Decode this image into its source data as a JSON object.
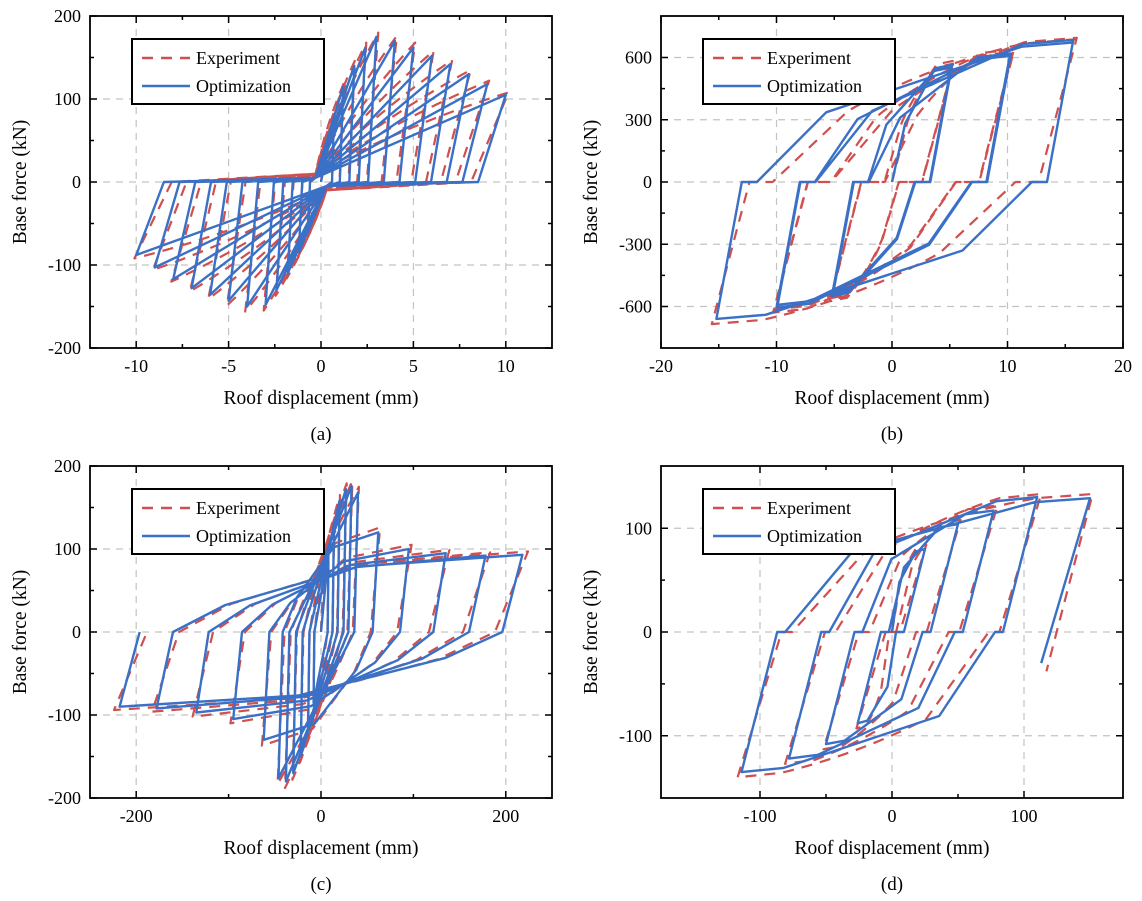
{
  "figure": {
    "background": "#ffffff",
    "colors": {
      "experiment": "#d04f4f",
      "optimization": "#3a70c6",
      "grid": "#c3c3c3",
      "axis": "#000000",
      "legend_border": "#000000",
      "legend_fill": "#ffffff"
    },
    "legend": {
      "experiment_label": "Experiment",
      "optimization_label": "Optimization"
    }
  },
  "chart_data": [
    {
      "id": "a",
      "type": "line",
      "panel_label": "(a)",
      "xlabel": "Roof displacement (mm)",
      "ylabel": "Base force (kN)",
      "xlim": [
        -12.5,
        12.5
      ],
      "xticks": [
        -10,
        -5,
        0,
        5,
        10
      ],
      "ylim": [
        -200,
        200
      ],
      "yticks": [
        -200,
        -100,
        0,
        100,
        200
      ],
      "grid": true,
      "legend_position": "top-left",
      "cycle_format": [
        "peak_disp_mm",
        "peak_force_kN",
        "neg_peak_disp_mm",
        "neg_peak_force_kN"
      ],
      "series": [
        {
          "name": "Experiment",
          "style": "dashed",
          "color": "#d04f4f",
          "model": "fan",
          "opts": {
            "uf": 0.8,
            "plat": 10,
            "mode": "plateau",
            "bulge": 0.04
          },
          "cycles": [
            [
              0.75,
              80,
              -0.75,
              -65
            ],
            [
              1.25,
              120,
              -1.25,
              -90
            ],
            [
              1.85,
              147,
              -1.85,
              -116
            ],
            [
              2.45,
              168,
              -2.45,
              -137
            ],
            [
              3.1,
              180,
              -3.1,
              -155
            ],
            [
              4.1,
              176,
              -4.1,
              -156
            ],
            [
              5.1,
              168,
              -5.1,
              -149
            ],
            [
              6.1,
              158,
              -6.1,
              -141
            ],
            [
              7.1,
              147,
              -7.1,
              -132
            ],
            [
              8.1,
              135,
              -8.1,
              -120
            ],
            [
              9.1,
              122,
              -9.1,
              -106
            ],
            [
              10.15,
              108,
              -10.1,
              -92
            ]
          ]
        },
        {
          "name": "Optimization",
          "style": "solid",
          "color": "#3a70c6",
          "model": "fan",
          "opts": {
            "uf": 0.85,
            "plat": 5,
            "mode": "plateau"
          },
          "cycles": [
            [
              0.7,
              75,
              -0.7,
              -60
            ],
            [
              1.2,
              115,
              -1.2,
              -85
            ],
            [
              1.8,
              140,
              -1.8,
              -110
            ],
            [
              2.4,
              162,
              -2.4,
              -130
            ],
            [
              3,
              175,
              -3,
              -148
            ],
            [
              4,
              170,
              -4,
              -150
            ],
            [
              5,
              162,
              -5,
              -143
            ],
            [
              6,
              152,
              -6,
              -136
            ],
            [
              7,
              142,
              -7,
              -128
            ],
            [
              8,
              130,
              -8,
              -117
            ],
            [
              9,
              118,
              -9,
              -103
            ],
            [
              10,
              105,
              -10,
              -88
            ]
          ]
        }
      ]
    },
    {
      "id": "b",
      "type": "line",
      "panel_label": "(b)",
      "xlabel": "Roof displacement (mm)",
      "ylabel": "Base force (kN)",
      "xlim": [
        -20,
        20
      ],
      "xticks": [
        -20,
        -10,
        0,
        10,
        20
      ],
      "ylim": [
        -800,
        800
      ],
      "yticks": [
        -600,
        -300,
        0,
        300,
        600
      ],
      "grid": true,
      "legend_position": "top-left",
      "cycle_format": [
        "peak_disp_mm",
        "peak_force_kN",
        "neg_peak_disp_mm",
        "neg_peak_force_kN"
      ],
      "series": [
        {
          "name": "Experiment",
          "style": "dashed",
          "color": "#d04f4f",
          "model": "para",
          "opts": {
            "ku": 210,
            "slip": 2.0,
            "cf": 0.25,
            "ff": 0.5,
            "tb": true,
            "bulge": 0.06
          },
          "cycles": [
            [
              5.4,
              585,
              -5.4,
              -575
            ],
            [
              5.3,
              570,
              -5.3,
              -560
            ],
            [
              10.6,
              640,
              -10.3,
              -630
            ],
            [
              10.5,
              628,
              -10.2,
              -615
            ],
            [
              16,
              695,
              -15.6,
              -685
            ],
            [
              15.9,
              688,
              null,
              null
            ]
          ]
        },
        {
          "name": "Optimization",
          "style": "solid",
          "color": "#3a70c6",
          "model": "para",
          "opts": {
            "ku": 300,
            "slip": 1.3,
            "cf": 0.22,
            "ff": 0.5,
            "tb": true
          },
          "cycles": [
            [
              5.2,
              565,
              -5.2,
              -550
            ],
            [
              5.1,
              552,
              -5.1,
              -538
            ],
            [
              10.3,
              620,
              -10,
              -605
            ],
            [
              10.2,
              608,
              -9.9,
              -592
            ],
            [
              15.7,
              685,
              -15.2,
              -660
            ],
            [
              15.6,
              672,
              null,
              null
            ]
          ]
        }
      ]
    },
    {
      "id": "c",
      "type": "line",
      "panel_label": "(c)",
      "xlabel": "Roof displacement (mm)",
      "ylabel": "Base force (kN)",
      "xlim": [
        -250,
        250
      ],
      "xticks": [
        -200,
        0,
        200
      ],
      "ylim": [
        -200,
        200
      ],
      "yticks": [
        -200,
        -100,
        0,
        100,
        200
      ],
      "grid": true,
      "legend_position": "top-left",
      "cycle_format": [
        "peak_disp_mm",
        "peak_force_kN",
        "neg_peak_disp_mm",
        "neg_peak_force_kN"
      ],
      "series": [
        {
          "name": "Experiment",
          "style": "dashed",
          "color": "#d04f4f",
          "model": "fan",
          "opts": {
            "uf": 0.84,
            "mode": "direct",
            "shapeAbove": 55,
            "bulge": 0.03
          },
          "cycles": [
            [
              8.3,
              99,
              -8.3,
              -89
            ],
            [
              14.5,
              136,
              -14.5,
              -126
            ],
            [
              20.6,
              165,
              -22.6,
              -157
            ],
            [
              27.8,
              179,
              -30.9,
              -178
            ],
            [
              34,
              182,
              -39,
              -188
            ],
            [
              41,
              175,
              -47,
              -183
            ],
            [
              64,
              126,
              -64,
              -137
            ],
            [
              98,
              105,
              -98,
              -110
            ],
            [
              139,
              99,
              -139,
              -102
            ],
            [
              183,
              96,
              -183,
              -96
            ],
            [
              224,
              97,
              -224,
              -94
            ]
          ]
        },
        {
          "name": "Optimization",
          "style": "solid",
          "color": "#3a70c6",
          "model": "fan",
          "opts": {
            "uf": 0.9,
            "mode": "direct",
            "shapeAbove": 55
          },
          "cycles": [
            [
              8,
              95,
              -8,
              -85
            ],
            [
              14,
              130,
              -14,
              -120
            ],
            [
              20,
              158,
              -22,
              -150
            ],
            [
              27,
              172,
              -30,
              -170
            ],
            [
              33,
              176,
              -38,
              -180
            ],
            [
              40,
              168,
              -46,
              -176
            ],
            [
              62,
              120,
              -62,
              -130
            ],
            [
              95,
              100,
              -95,
              -105
            ],
            [
              135,
              95,
              -135,
              -97
            ],
            [
              178,
              92,
              -178,
              -92
            ],
            [
              218,
              93,
              -218,
              -90
            ]
          ]
        }
      ]
    },
    {
      "id": "d",
      "type": "line",
      "panel_label": "(d)",
      "xlabel": "Roof displacement (mm)",
      "ylabel": "Base force (kN)",
      "xlim": [
        -175,
        175
      ],
      "xticks": [
        -100,
        0,
        100
      ],
      "ylim": [
        -160,
        160
      ],
      "yticks": [
        -100,
        0,
        100
      ],
      "grid": true,
      "legend_position": "top-left",
      "cycle_format": [
        "peak_disp_mm",
        "peak_force_kN",
        "neg_peak_disp_mm",
        "neg_peak_force_kN"
      ],
      "series": [
        {
          "name": "Experiment",
          "style": "dashed",
          "color": "#d04f4f",
          "model": "para",
          "opts": {
            "ku": 4.2,
            "slip": 8,
            "cf": 0.25,
            "ff": 0.6,
            "tb": true,
            "end": [
              117,
              -38
            ],
            "bulge": 0.05
          },
          "cycles": [
            [
              26,
              84,
              -27,
              -93
            ],
            [
              52,
              108,
              -52,
              -113
            ],
            [
              80,
              122,
              -81,
              -127
            ],
            [
              113,
              133,
              -117,
              -140
            ],
            [
              152,
              133,
              null,
              null
            ]
          ]
        },
        {
          "name": "Optimization",
          "style": "solid",
          "color": "#3a70c6",
          "model": "para",
          "opts": {
            "ku": 5,
            "slip": 6,
            "cf": 0.22,
            "ff": 0.6,
            "tb": true,
            "end": [
              113,
              -30
            ]
          },
          "cycles": [
            [
              25,
              80,
              -26,
              -88
            ],
            [
              50,
              104,
              -50,
              -108
            ],
            [
              77,
              117,
              -78,
              -122
            ],
            [
              110,
              130,
              -114,
              -135
            ],
            [
              150,
              129,
              null,
              null
            ]
          ]
        }
      ]
    }
  ]
}
